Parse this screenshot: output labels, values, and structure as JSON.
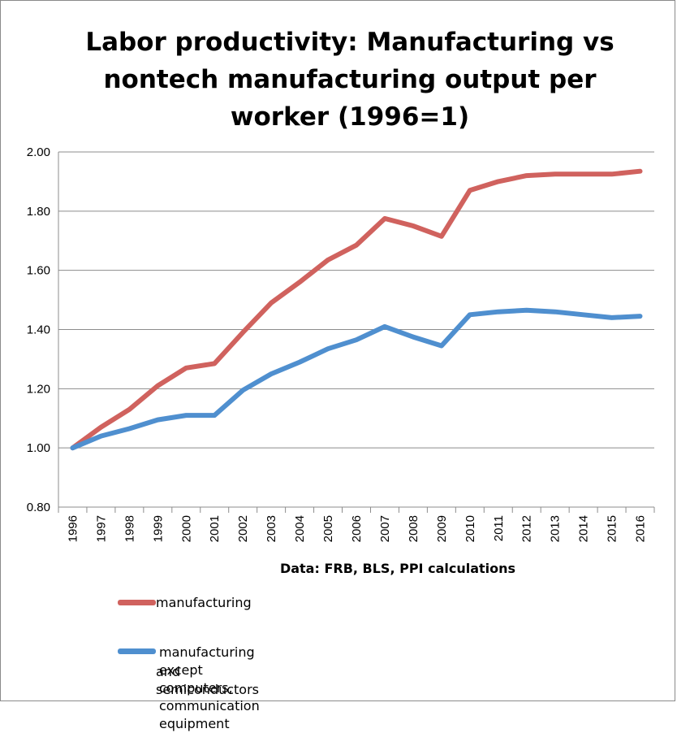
{
  "chart_data": {
    "type": "line",
    "title_lines": [
      "Labor productivity: Manufacturing vs",
      "nontech manufacturing output per",
      "worker (1996=1)"
    ],
    "source": "Data: FRB, BLS, PPI calculations",
    "x": [
      "1996",
      "1997",
      "1998",
      "1999",
      "2000",
      "2001",
      "2002",
      "2003",
      "2004",
      "2005",
      "2006",
      "2007",
      "2008",
      "2009",
      "2010",
      "2011",
      "2012",
      "2013",
      "2014",
      "2015",
      "2016"
    ],
    "ylim": [
      0.8,
      2.0
    ],
    "yticks": [
      "0.80",
      "1.00",
      "1.20",
      "1.40",
      "1.60",
      "1.80",
      "2.00"
    ],
    "grid": true,
    "legend_position": "bottom",
    "series": [
      {
        "name": "manufacturing",
        "color": "#d0625e",
        "values": [
          1.0,
          1.07,
          1.13,
          1.21,
          1.27,
          1.285,
          1.39,
          1.49,
          1.56,
          1.635,
          1.685,
          1.775,
          1.75,
          1.715,
          1.87,
          1.9,
          1.92,
          1.925,
          1.925,
          1.925,
          1.935
        ]
      },
      {
        "name": "manufacturing except computers, communication equipment and semiconductors",
        "legend_lines": [
          "manufacturing except computers, communication equipment",
          "and semiconductors"
        ],
        "color": "#4f8fcf",
        "values": [
          1.0,
          1.04,
          1.065,
          1.095,
          1.11,
          1.11,
          1.195,
          1.25,
          1.29,
          1.335,
          1.365,
          1.41,
          1.375,
          1.345,
          1.45,
          1.46,
          1.465,
          1.46,
          1.45,
          1.44,
          1.445
        ]
      }
    ]
  }
}
